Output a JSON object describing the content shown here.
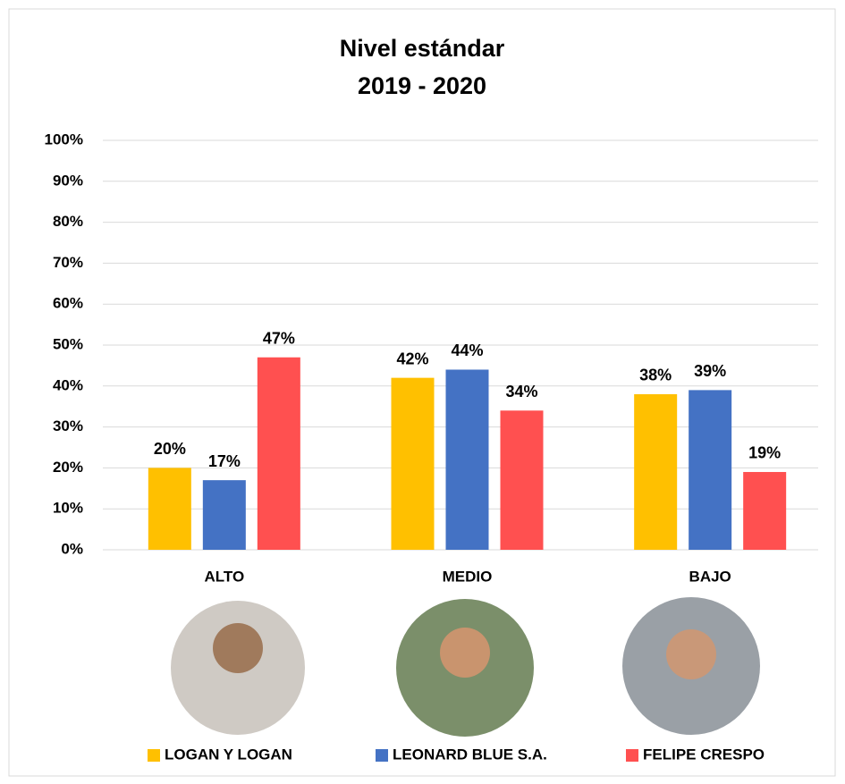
{
  "chart_data": {
    "type": "bar",
    "title": [
      "Nivel estándar",
      "2019 - 2020"
    ],
    "categories": [
      "ALTO",
      "MEDIO",
      "BAJO"
    ],
    "series": [
      {
        "name": "LOGAN Y LOGAN",
        "color": "#FFC000",
        "values": [
          20,
          42,
          38
        ],
        "value_labels": [
          "20%",
          "42%",
          "38%"
        ]
      },
      {
        "name": "LEONARD BLUE S.A.",
        "color": "#4472C4",
        "values": [
          17,
          44,
          39
        ],
        "value_labels": [
          "17%",
          "44%",
          "39%"
        ]
      },
      {
        "name": "FELIPE CRESPO",
        "color": "#FF5050",
        "values": [
          47,
          34,
          19
        ],
        "value_labels": [
          "47%",
          "34%",
          "19%"
        ]
      }
    ],
    "ylim": [
      0,
      100
    ],
    "yticks": [
      {
        "value": 0,
        "label": "0%"
      },
      {
        "value": 10,
        "label": "10%"
      },
      {
        "value": 20,
        "label": "20%"
      },
      {
        "value": 30,
        "label": "30%"
      },
      {
        "value": 40,
        "label": "40%"
      },
      {
        "value": 50,
        "label": "50%"
      },
      {
        "value": 60,
        "label": "60%"
      },
      {
        "value": 70,
        "label": "70%"
      },
      {
        "value": 80,
        "label": "80%"
      },
      {
        "value": 90,
        "label": "90%"
      },
      {
        "value": 100,
        "label": "100%"
      }
    ],
    "grid": true,
    "legend": "bottom"
  }
}
